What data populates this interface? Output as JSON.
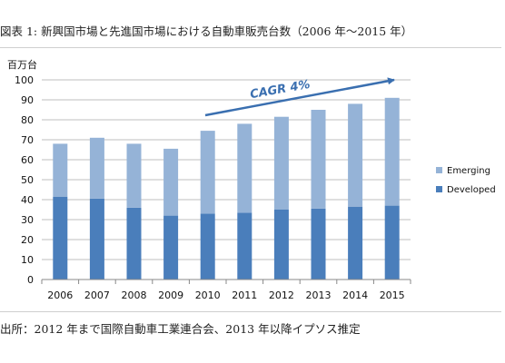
{
  "figure_title": "図表 1: 新興国市場と先進国市場における自動車販売台数（2006 年～2015 年）",
  "source_note": "出所：2012 年まで国際自動車工業連合会、2013 年以降イプソス推定",
  "colors": {
    "emerging": "#95B3D7",
    "developed": "#4A7EBB",
    "cagr": "#3A6FB0",
    "grid": "#BFBFBF",
    "axis": "#888888"
  },
  "chart_data": {
    "type": "bar",
    "stacked": true,
    "title": "",
    "xlabel": "",
    "ylabel": "百万台",
    "ylim": [
      0,
      100
    ],
    "yticks": [
      0,
      10,
      20,
      30,
      40,
      50,
      60,
      70,
      80,
      90,
      100
    ],
    "grid": true,
    "legend_position": "right",
    "categories": [
      "2006",
      "2007",
      "2008",
      "2009",
      "2010",
      "2011",
      "2012",
      "2013",
      "2014",
      "2015"
    ],
    "series": [
      {
        "name": "Developed",
        "values": [
          41.5,
          40.5,
          36,
          32,
          33,
          33.5,
          35,
          35.5,
          36.5,
          37
        ]
      },
      {
        "name": "Emerging",
        "values": [
          26.5,
          30.5,
          32,
          33.5,
          41.5,
          44.5,
          46.5,
          49.5,
          51.5,
          54
        ]
      }
    ],
    "totals": [
      68,
      71,
      68,
      65.5,
      74.5,
      78,
      81.5,
      85,
      88,
      91
    ],
    "legend": [
      "Emerging",
      "Developed"
    ],
    "annotation": {
      "text": "CAGR 4%"
    }
  }
}
